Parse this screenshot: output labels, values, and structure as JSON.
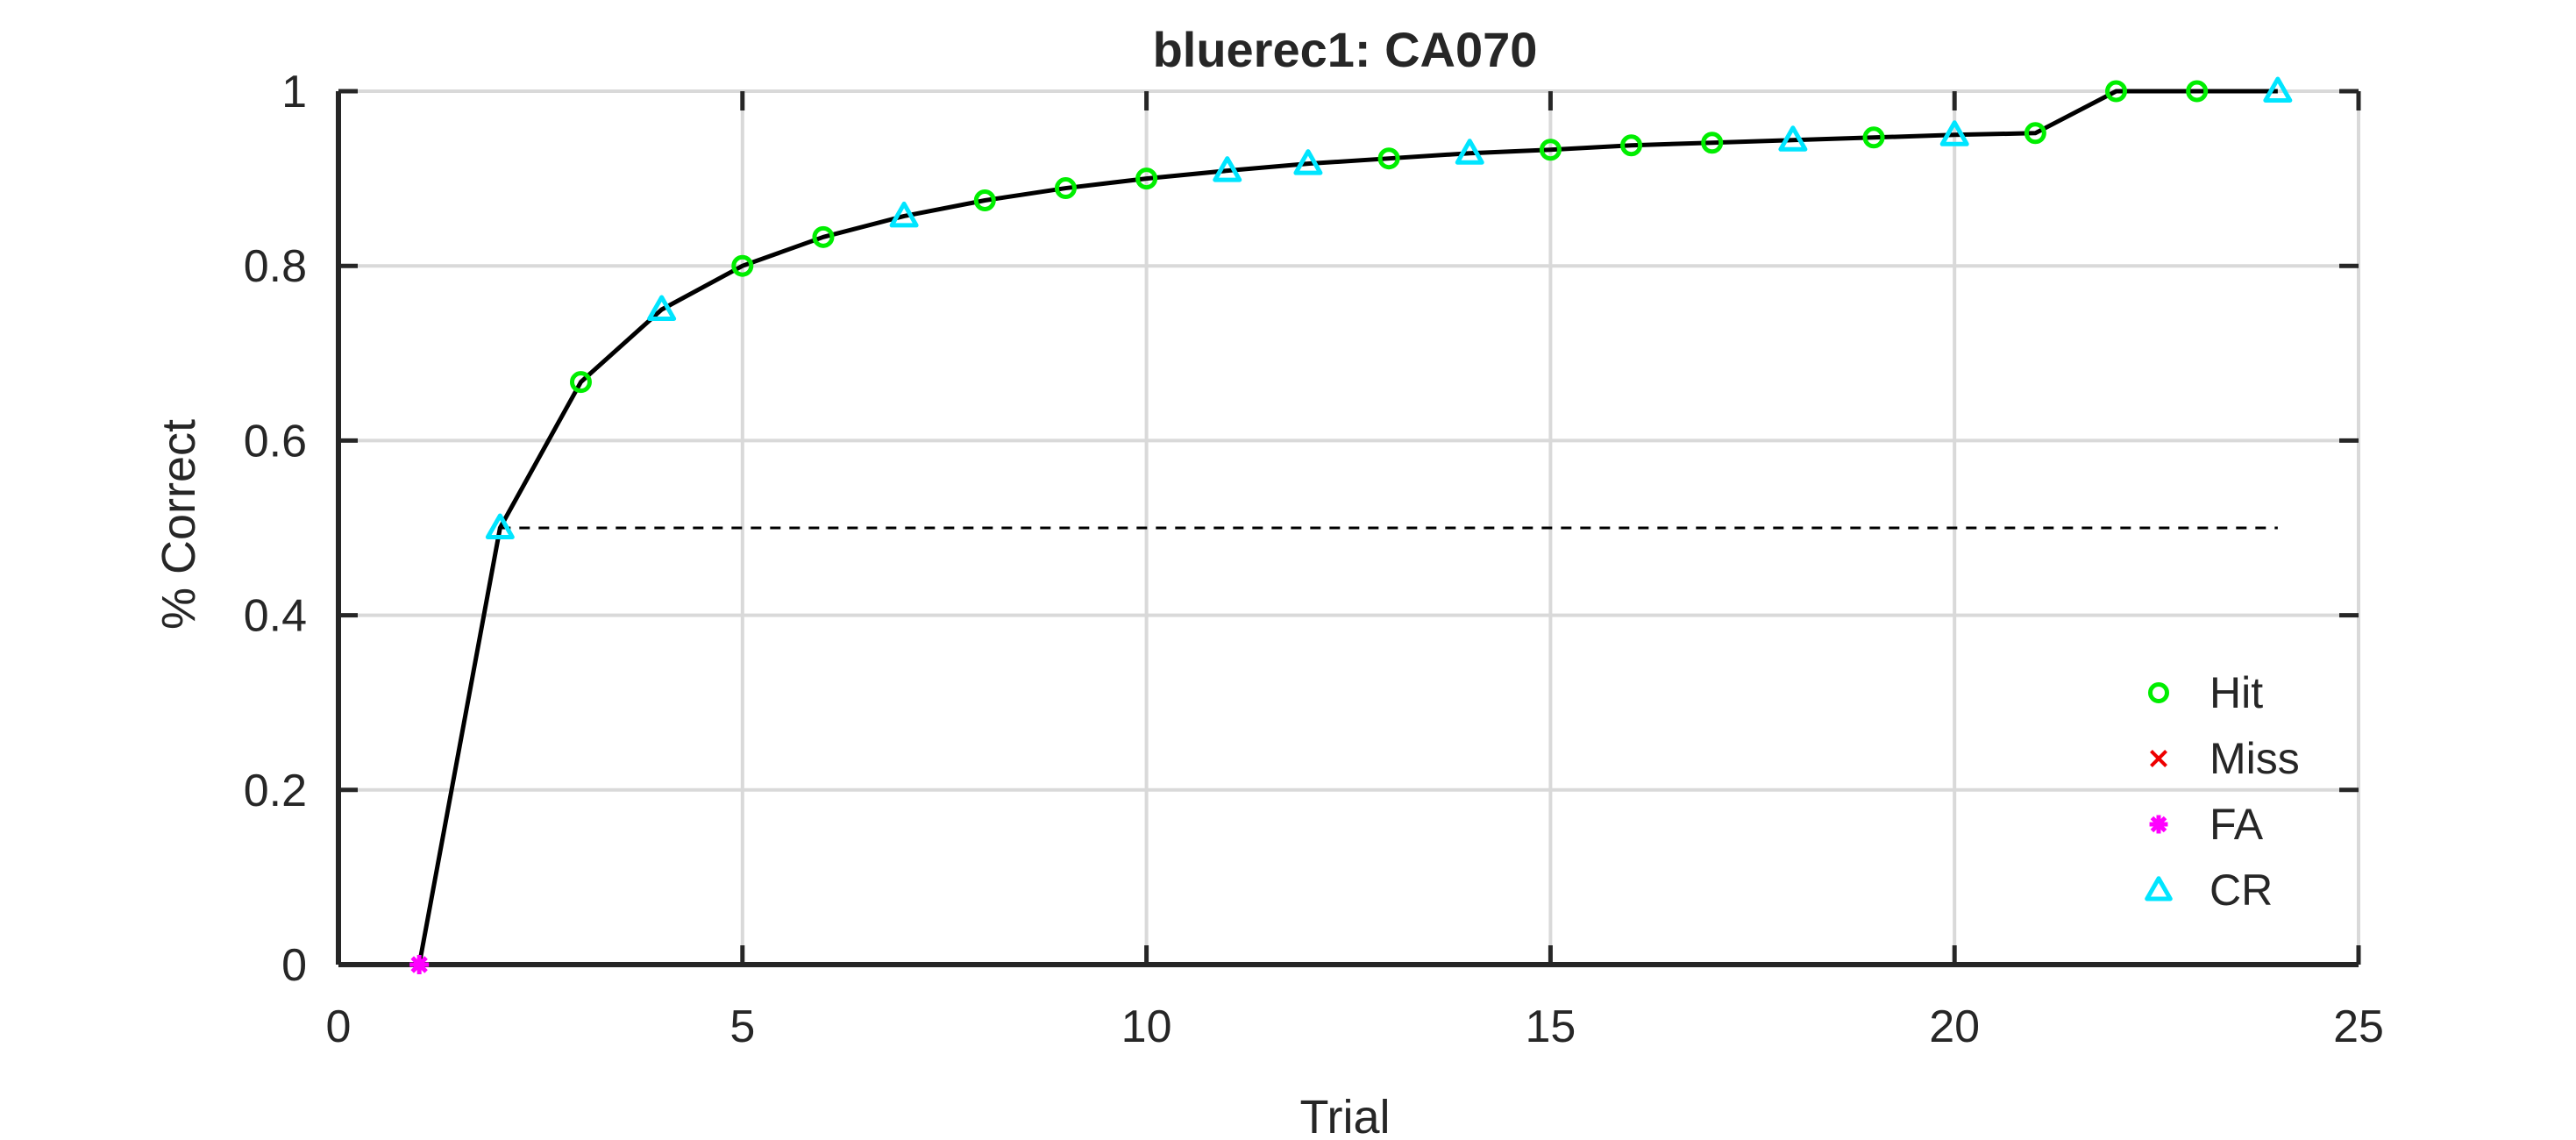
{
  "chart_data": {
    "type": "line",
    "title": "bluerec1: CA070",
    "xlabel": "Trial",
    "ylabel": "% Correct",
    "xlim": [
      0,
      25
    ],
    "ylim": [
      0,
      1
    ],
    "xticks": [
      0,
      5,
      10,
      15,
      20,
      25
    ],
    "yticks": [
      0,
      0.2,
      0.4,
      0.6,
      0.8,
      1
    ],
    "xtick_labels": [
      "0",
      "5",
      "10",
      "15",
      "20",
      "25"
    ],
    "ytick_labels": [
      "0",
      "0.2",
      "0.4",
      "0.6",
      "0.8",
      "1"
    ],
    "grid": true,
    "legend_position": "bottom-right",
    "colors": {
      "line": "#000000",
      "hit": "#00ee00",
      "miss": "#ee0000",
      "fa": "#ff00ff",
      "cr": "#00e5ff",
      "grid": "#d9d9d9",
      "axis": "#262626"
    },
    "line": {
      "x": [
        1,
        2,
        3,
        4,
        5,
        6,
        7,
        8,
        9,
        10,
        11,
        12,
        13,
        14,
        15,
        16,
        17,
        18,
        19,
        20,
        21,
        22,
        23,
        24
      ],
      "y": [
        0,
        0.5,
        0.667,
        0.75,
        0.8,
        0.833,
        0.857,
        0.875,
        0.889,
        0.9,
        0.909,
        0.917,
        0.923,
        0.929,
        0.933,
        0.938,
        0.941,
        0.944,
        0.947,
        0.95,
        0.952,
        1,
        1,
        1
      ]
    },
    "reference_line": {
      "y": 0.5,
      "x_start": 2,
      "x_end": 24
    },
    "series": [
      {
        "name": "Hit",
        "marker": "circle",
        "x": [
          3,
          5,
          6,
          8,
          9,
          10,
          13,
          15,
          16,
          17,
          19,
          21,
          22,
          23
        ],
        "y": [
          0.667,
          0.8,
          0.833,
          0.875,
          0.889,
          0.9,
          0.923,
          0.933,
          0.938,
          0.941,
          0.947,
          0.952,
          1,
          1
        ]
      },
      {
        "name": "Miss",
        "marker": "x",
        "x": [],
        "y": []
      },
      {
        "name": "FA",
        "marker": "star",
        "x": [
          1
        ],
        "y": [
          0
        ]
      },
      {
        "name": "CR",
        "marker": "triangle",
        "x": [
          2,
          4,
          7,
          11,
          12,
          14,
          18,
          20,
          24
        ],
        "y": [
          0.5,
          0.75,
          0.857,
          0.909,
          0.917,
          0.929,
          0.944,
          0.95,
          1
        ]
      }
    ]
  }
}
